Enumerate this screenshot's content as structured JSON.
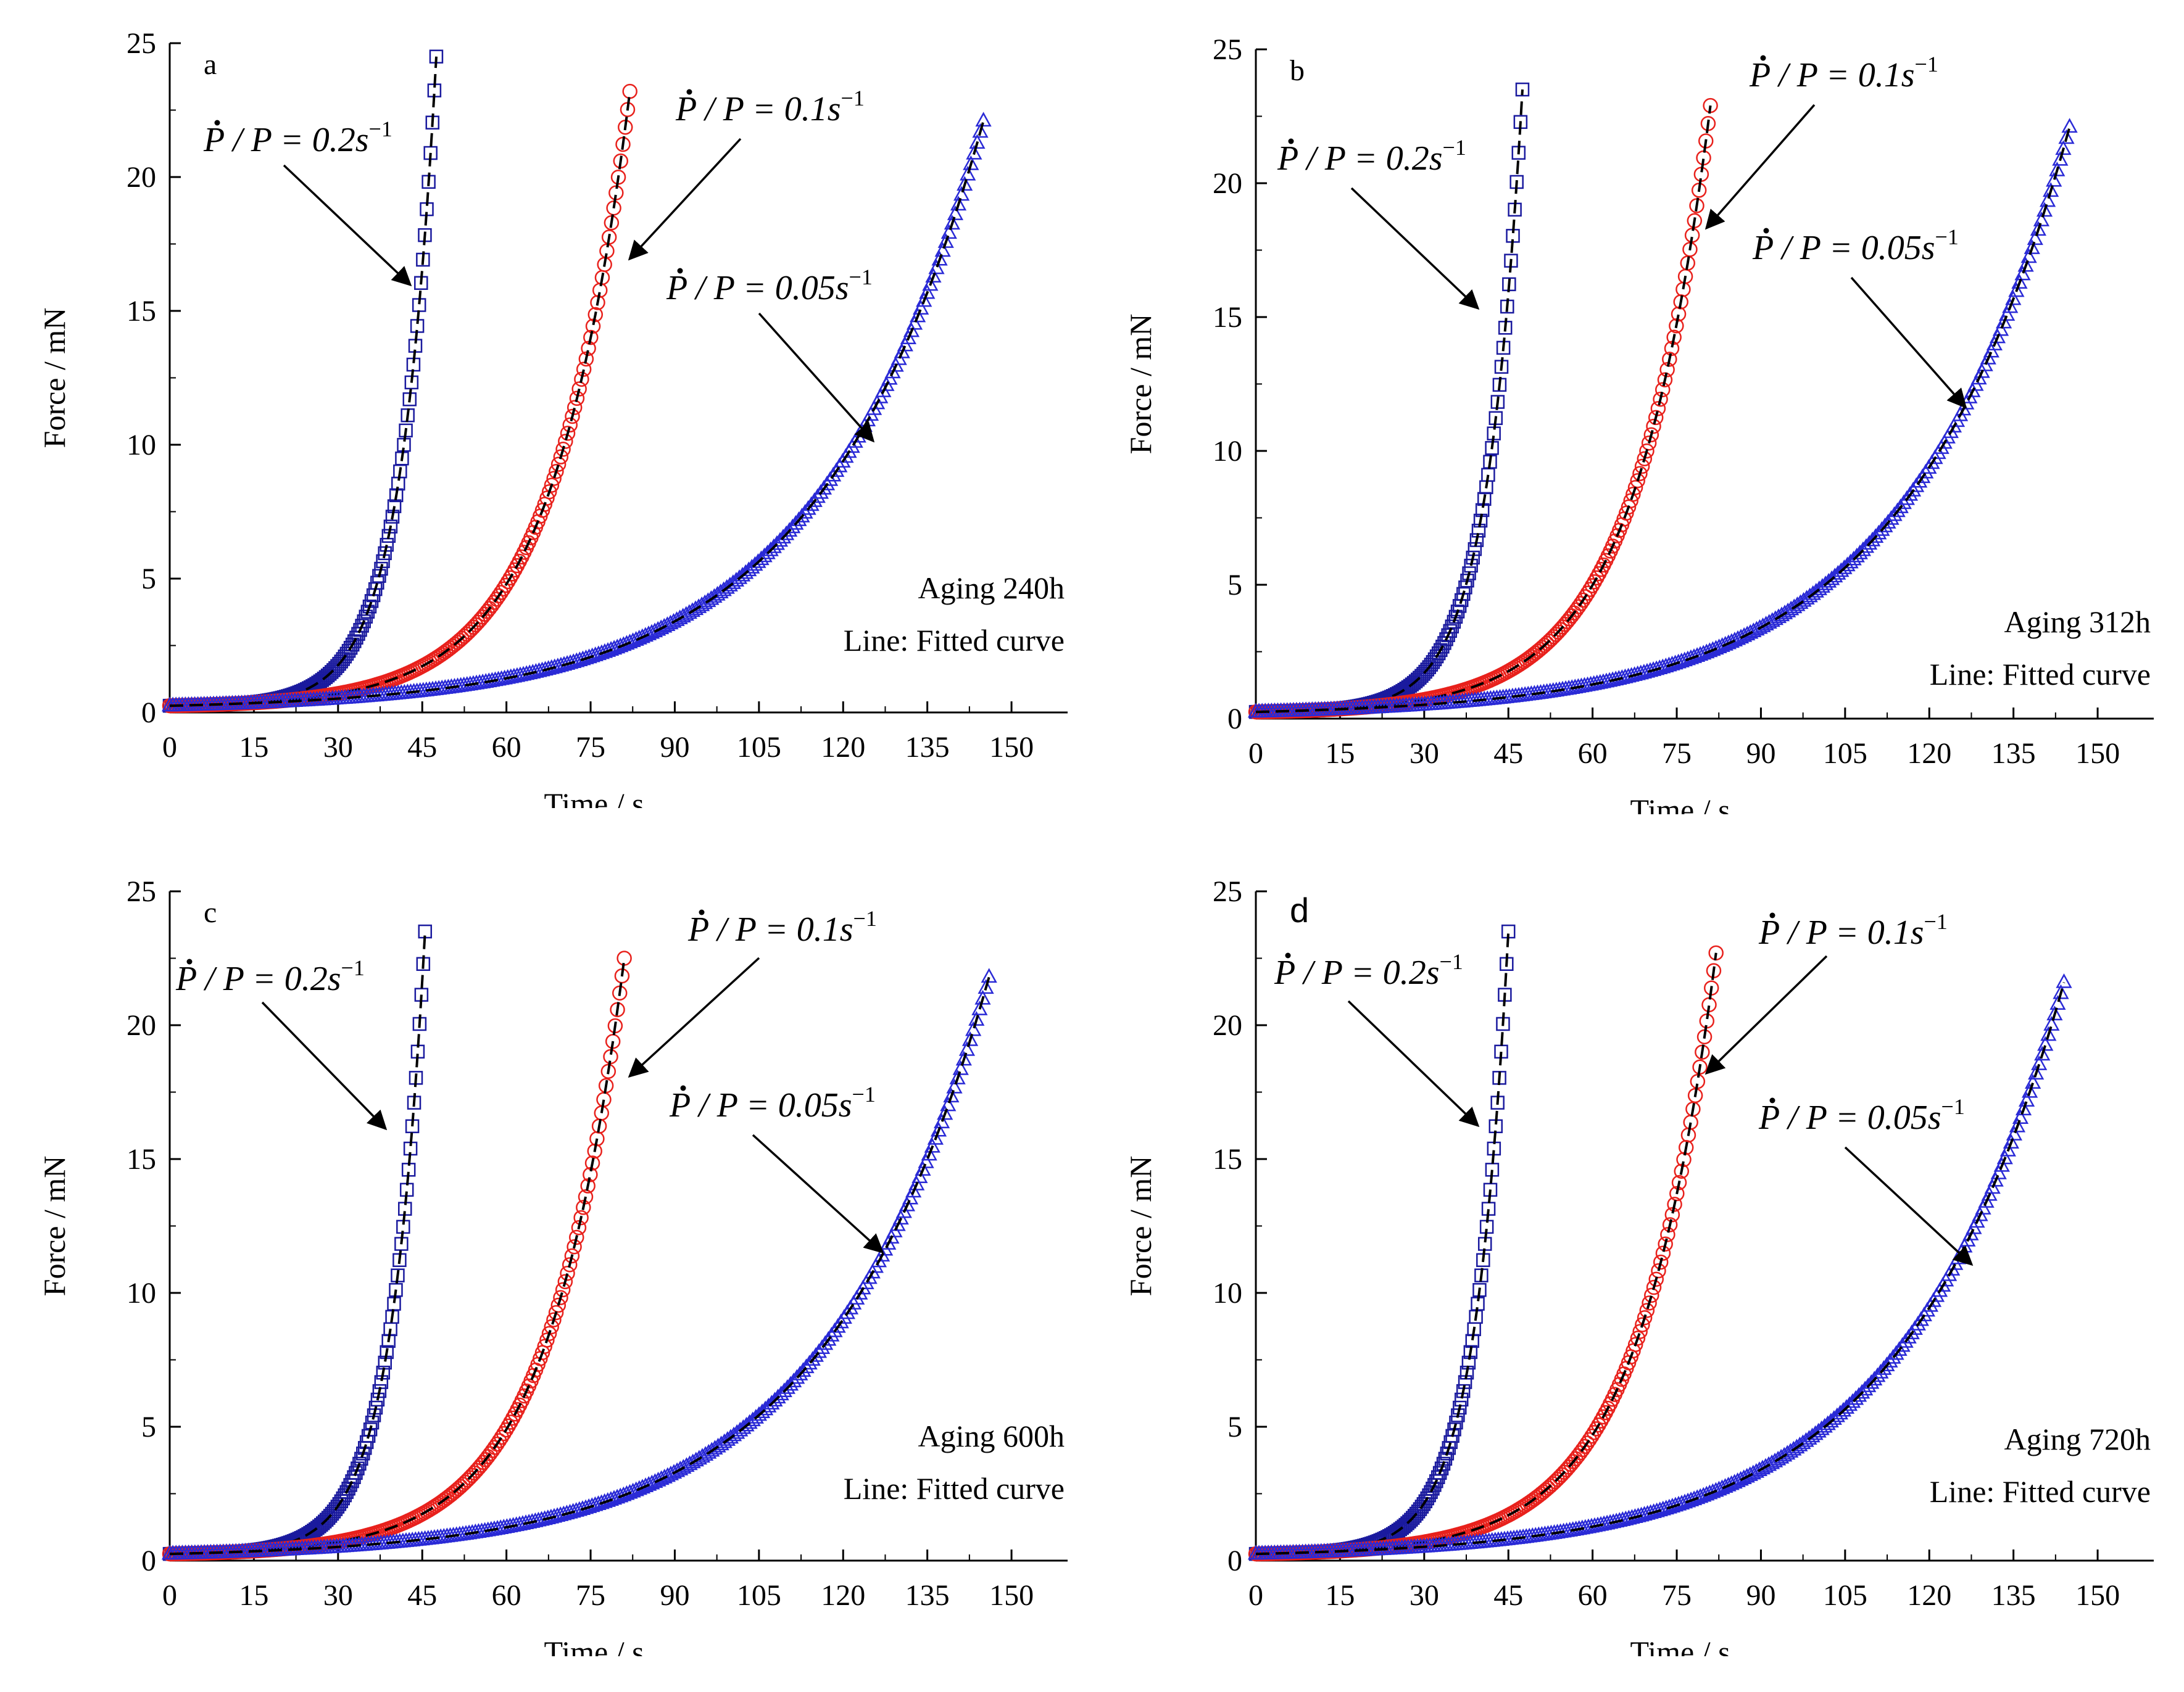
{
  "colors": {
    "fast_series": "#1a1a9e",
    "mid_series": "#e8211c",
    "slow_series": "#2a2ad6",
    "fit_line": "#000000",
    "axis": "#000000"
  },
  "chart_data": [
    {
      "type": "line",
      "panel_label": "a",
      "xlabel": "Time / s",
      "ylabel": "Force / mN",
      "xlim": [
        0,
        160
      ],
      "ylim": [
        0,
        25
      ],
      "xticks": [
        "0",
        "15",
        "30",
        "45",
        "60",
        "75",
        "90",
        "105",
        "120",
        "135",
        "150"
      ],
      "yticks": [
        "0",
        "5",
        "10",
        "15",
        "20",
        "25"
      ],
      "annotations": [
        "Aging 240h",
        "Line: Fitted curve"
      ],
      "series": [
        {
          "name": "Ṗ / P = 0.2s⁻¹",
          "rate_label": "0.2",
          "marker": "square",
          "color": "#1a1a9e",
          "t_start": 0,
          "t_end": 47.5,
          "f0": 0.25,
          "f_end": 24.5
        },
        {
          "name": "Ṗ / P = 0.1s⁻¹",
          "rate_label": "0.1",
          "marker": "circle",
          "color": "#e8211c",
          "t_start": 0,
          "t_end": 82,
          "f0": 0.25,
          "f_end": 23.2
        },
        {
          "name": "Ṗ / P = 0.05s⁻¹",
          "rate_label": "0.05",
          "marker": "triangle",
          "color": "#2a2ad6",
          "t_start": 0,
          "t_end": 145,
          "f0": 0.25,
          "f_end": 22.1
        }
      ]
    },
    {
      "type": "line",
      "panel_label": "b",
      "xlabel": "Time / s",
      "ylabel": "Force / mN",
      "xlim": [
        0,
        160
      ],
      "ylim": [
        0,
        25
      ],
      "xticks": [
        "0",
        "15",
        "30",
        "45",
        "60",
        "75",
        "90",
        "105",
        "120",
        "135",
        "150"
      ],
      "yticks": [
        "0",
        "5",
        "10",
        "15",
        "20",
        "25"
      ],
      "annotations": [
        "Aging 312h",
        "Line: Fitted curve"
      ],
      "series": [
        {
          "name": "Ṗ / P = 0.2s⁻¹",
          "rate_label": "0.2",
          "marker": "square",
          "color": "#1a1a9e",
          "t_start": 0,
          "t_end": 47.5,
          "f0": 0.25,
          "f_end": 23.5
        },
        {
          "name": "Ṗ / P = 0.1s⁻¹",
          "rate_label": "0.1",
          "marker": "circle",
          "color": "#e8211c",
          "t_start": 0,
          "t_end": 81,
          "f0": 0.25,
          "f_end": 22.9
        },
        {
          "name": "Ṗ / P = 0.05s⁻¹",
          "rate_label": "0.05",
          "marker": "triangle",
          "color": "#2a2ad6",
          "t_start": 0,
          "t_end": 145,
          "f0": 0.25,
          "f_end": 22.1
        }
      ]
    },
    {
      "type": "line",
      "panel_label": "c",
      "xlabel": "Time / s",
      "ylabel": "Force / mN",
      "xlim": [
        0,
        160
      ],
      "ylim": [
        0,
        25
      ],
      "xticks": [
        "0",
        "15",
        "30",
        "45",
        "60",
        "75",
        "90",
        "105",
        "120",
        "135",
        "150"
      ],
      "yticks": [
        "0",
        "5",
        "10",
        "15",
        "20",
        "25"
      ],
      "annotations": [
        "Aging 600h",
        "Line: Fitted curve"
      ],
      "series": [
        {
          "name": "Ṗ / P = 0.2s⁻¹",
          "rate_label": "0.2",
          "marker": "square",
          "color": "#1a1a9e",
          "t_start": 0,
          "t_end": 45.5,
          "f0": 0.25,
          "f_end": 23.5
        },
        {
          "name": "Ṗ / P = 0.1s⁻¹",
          "rate_label": "0.1",
          "marker": "circle",
          "color": "#e8211c",
          "t_start": 0,
          "t_end": 81,
          "f0": 0.25,
          "f_end": 22.5
        },
        {
          "name": "Ṗ / P = 0.05s⁻¹",
          "rate_label": "0.05",
          "marker": "triangle",
          "color": "#2a2ad6",
          "t_start": 0,
          "t_end": 146,
          "f0": 0.25,
          "f_end": 21.8
        }
      ]
    },
    {
      "type": "line",
      "panel_label": "d",
      "xlabel": "Time / s",
      "ylabel": "Force / mN",
      "xlim": [
        0,
        160
      ],
      "ylim": [
        0,
        25
      ],
      "xticks": [
        "0",
        "15",
        "30",
        "45",
        "60",
        "75",
        "90",
        "105",
        "120",
        "135",
        "150"
      ],
      "yticks": [
        "0",
        "5",
        "10",
        "15",
        "20",
        "25"
      ],
      "annotations": [
        "Aging 720h",
        "Line: Fitted curve"
      ],
      "series": [
        {
          "name": "Ṗ / P = 0.2s⁻¹",
          "rate_label": "0.2",
          "marker": "square",
          "color": "#1a1a9e",
          "t_start": 0,
          "t_end": 45,
          "f0": 0.25,
          "f_end": 23.5
        },
        {
          "name": "Ṗ / P = 0.1s⁻¹",
          "rate_label": "0.1",
          "marker": "circle",
          "color": "#e8211c",
          "t_start": 0,
          "t_end": 82,
          "f0": 0.25,
          "f_end": 22.7
        },
        {
          "name": "Ṗ / P = 0.05s⁻¹",
          "rate_label": "0.05",
          "marker": "triangle",
          "color": "#2a2ad6",
          "t_start": 0,
          "t_end": 144,
          "f0": 0.25,
          "f_end": 21.6
        }
      ]
    }
  ]
}
